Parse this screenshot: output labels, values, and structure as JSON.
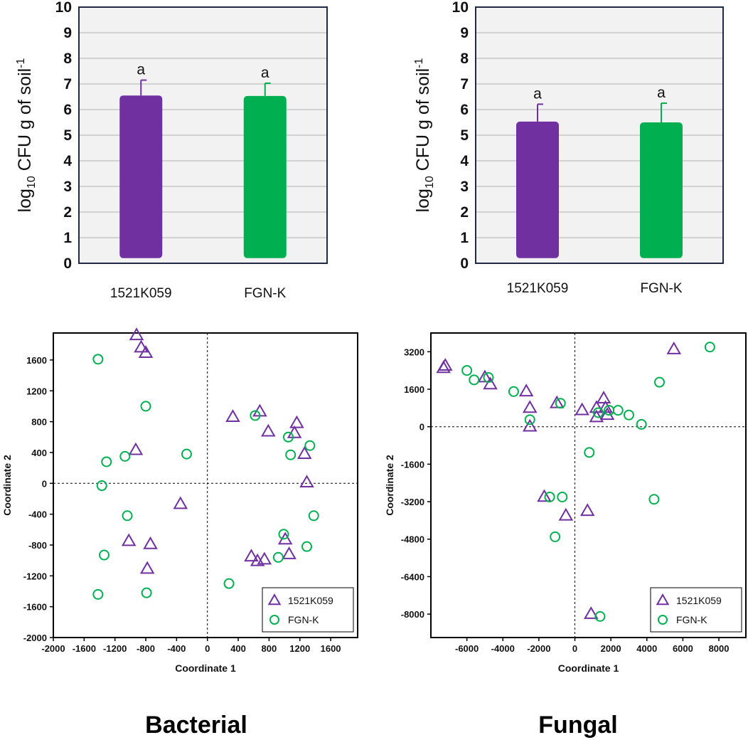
{
  "colors": {
    "purple": "#7030a0",
    "green": "#00b050",
    "plot_bg": "#f2f2f2",
    "grid": "#bfbfbf",
    "frame": "#1f2a44"
  },
  "captions": [
    "Bacterial",
    "Fungal"
  ],
  "chart_data": [
    {
      "type": "bar",
      "title": "",
      "ylabel_base": "log",
      "ylabel_sub": "10",
      "ylabel_rest": " CFU g of soil",
      "ylabel_sup": "-1",
      "categories": [
        "1521K059",
        "FGN-K"
      ],
      "values": [
        6.55,
        6.53
      ],
      "errors": [
        0.6,
        0.5
      ],
      "letters": [
        "a",
        "a"
      ],
      "ylim": [
        0,
        10
      ],
      "yticks": [
        0,
        1,
        2,
        3,
        4,
        5,
        6,
        7,
        8,
        9,
        10
      ]
    },
    {
      "type": "bar",
      "title": "",
      "ylabel_base": "log",
      "ylabel_sub": "10",
      "ylabel_rest": " CFU g of soil",
      "ylabel_sup": "-1",
      "categories": [
        "1521K059",
        "FGN-K"
      ],
      "values": [
        5.53,
        5.5
      ],
      "errors": [
        0.68,
        0.75
      ],
      "letters": [
        "a",
        "a"
      ],
      "ylim": [
        0,
        10
      ],
      "yticks": [
        0,
        1,
        2,
        3,
        4,
        5,
        6,
        7,
        8,
        9,
        10
      ]
    },
    {
      "type": "scatter",
      "xlabel": "Coordinate 1",
      "ylabel": "Coordinate 2",
      "xlim": [
        -2000,
        1950
      ],
      "ylim": [
        -2000,
        1950
      ],
      "xticks": [
        -2000,
        -1600,
        -1200,
        -800,
        -400,
        0,
        400,
        800,
        1200,
        1600
      ],
      "yticks": [
        -2000,
        -1600,
        -1200,
        -800,
        -400,
        0,
        400,
        800,
        1200,
        1600
      ],
      "legend_position": "bottom-right",
      "series": [
        {
          "name": "1521K059",
          "marker": "triangle",
          "points": [
            [
              -920,
              1920
            ],
            [
              -860,
              1760
            ],
            [
              -800,
              1690
            ],
            [
              -930,
              430
            ],
            [
              -1020,
              -750
            ],
            [
              -740,
              -790
            ],
            [
              -780,
              -1110
            ],
            [
              -350,
              -270
            ],
            [
              330,
              860
            ],
            [
              680,
              930
            ],
            [
              790,
              670
            ],
            [
              1130,
              650
            ],
            [
              1160,
              780
            ],
            [
              1260,
              380
            ],
            [
              1290,
              10
            ],
            [
              570,
              -950
            ],
            [
              650,
              -1010
            ],
            [
              740,
              -990
            ],
            [
              1010,
              -730
            ],
            [
              1060,
              -920
            ]
          ]
        },
        {
          "name": "FGN-K",
          "marker": "circle",
          "points": [
            [
              -1420,
              1610
            ],
            [
              -800,
              1000
            ],
            [
              -1310,
              280
            ],
            [
              -1070,
              350
            ],
            [
              -270,
              380
            ],
            [
              -1370,
              -30
            ],
            [
              -1040,
              -420
            ],
            [
              -1340,
              -930
            ],
            [
              -1420,
              -1440
            ],
            [
              -790,
              -1420
            ],
            [
              620,
              880
            ],
            [
              1050,
              600
            ],
            [
              1080,
              370
            ],
            [
              1330,
              490
            ],
            [
              1380,
              -420
            ],
            [
              990,
              -660
            ],
            [
              920,
              -960
            ],
            [
              1290,
              -820
            ],
            [
              280,
              -1300
            ]
          ]
        }
      ]
    },
    {
      "type": "scatter",
      "xlabel": "Coordinate 1",
      "ylabel": "Coordinate 2",
      "xlim": [
        -8000,
        9500
      ],
      "ylim": [
        -9000,
        4000
      ],
      "xticks": [
        -6000,
        -4000,
        -2000,
        0,
        2000,
        4000,
        6000,
        8000
      ],
      "yticks": [
        -8000,
        -6400,
        -4800,
        -3200,
        -1600,
        0,
        1600,
        3200
      ],
      "legend_position": "bottom-right",
      "series": [
        {
          "name": "1521K059",
          "marker": "triangle",
          "points": [
            [
              -7300,
              2500
            ],
            [
              -7200,
              2600
            ],
            [
              -5000,
              2100
            ],
            [
              -4700,
              1800
            ],
            [
              -2700,
              1500
            ],
            [
              -2500,
              800
            ],
            [
              -2500,
              0
            ],
            [
              -1000,
              1000
            ],
            [
              400,
              700
            ],
            [
              1200,
              800
            ],
            [
              1200,
              400
            ],
            [
              1600,
              1200
            ],
            [
              1700,
              800
            ],
            [
              1800,
              500
            ],
            [
              5500,
              3300
            ],
            [
              700,
              -3600
            ],
            [
              -500,
              -3800
            ],
            [
              -1700,
              -3000
            ],
            [
              900,
              -8000
            ]
          ]
        },
        {
          "name": "FGN-K",
          "marker": "circle",
          "points": [
            [
              -6000,
              2400
            ],
            [
              -5600,
              2000
            ],
            [
              -4800,
              2100
            ],
            [
              -3400,
              1500
            ],
            [
              -2500,
              300
            ],
            [
              -800,
              1000
            ],
            [
              1300,
              600
            ],
            [
              1900,
              700
            ],
            [
              2400,
              700
            ],
            [
              3000,
              500
            ],
            [
              3700,
              100
            ],
            [
              4700,
              1900
            ],
            [
              7500,
              3400
            ],
            [
              800,
              -1100
            ],
            [
              -1400,
              -3000
            ],
            [
              -700,
              -3000
            ],
            [
              -1100,
              -4700
            ],
            [
              4400,
              -3100
            ],
            [
              1400,
              -8100
            ]
          ]
        }
      ]
    }
  ]
}
